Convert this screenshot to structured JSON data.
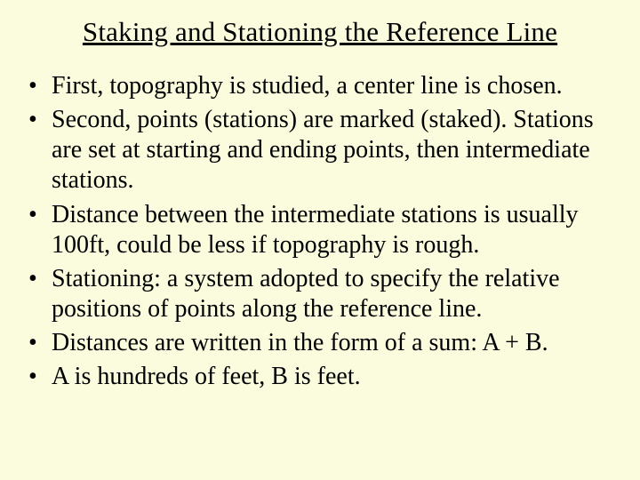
{
  "slide": {
    "title": "Staking and Stationing the Reference Line",
    "background_color": "#fbfcdd",
    "text_color": "#000000",
    "title_fontsize": 31,
    "body_fontsize": 28,
    "font_family": "Times New Roman",
    "bullets": [
      "First, topography is studied, a center line is chosen.",
      "Second, points (stations) are marked (staked). Stations are set at starting and ending points, then intermediate stations.",
      "Distance between the intermediate stations is usually 100ft, could be less if topography is rough.",
      "Stationing: a system adopted to specify the relative positions of points along the reference line.",
      "Distances are written in the form of a sum: A + B.",
      "A is hundreds of feet, B is feet."
    ]
  }
}
